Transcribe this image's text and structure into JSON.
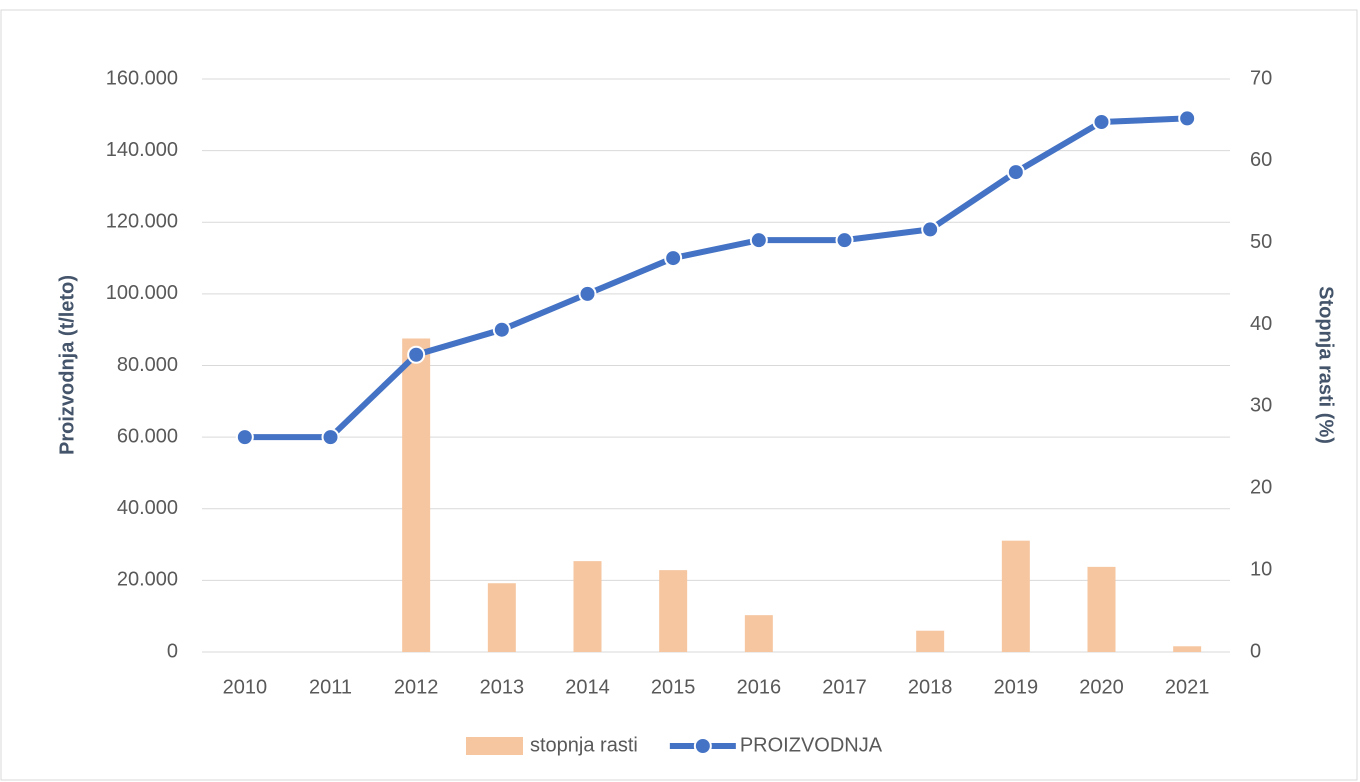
{
  "chart_data": {
    "type": "combo",
    "categories": [
      "2010",
      "2011",
      "2012",
      "2013",
      "2014",
      "2015",
      "2016",
      "2017",
      "2018",
      "2019",
      "2020",
      "2021"
    ],
    "y_label": "Proizvodnja (t/leto)",
    "y2_label": "Stopnja rasti (%)",
    "series": [
      {
        "name": "stopnja rasti",
        "type": "bar",
        "axis": "y2",
        "color": "#f5c6a0",
        "values": [
          0,
          0,
          38.3,
          8.4,
          11.1,
          10.0,
          4.5,
          0,
          2.6,
          13.6,
          10.4,
          0.7
        ]
      },
      {
        "name": "PROIZVODNJA",
        "type": "line",
        "axis": "y",
        "color": "#4472c4",
        "values": [
          60000,
          60000,
          83000,
          90000,
          100000,
          110000,
          115000,
          115000,
          118000,
          134000,
          148000,
          149000
        ]
      }
    ],
    "ylim": [
      0,
      160000
    ],
    "yticks": [
      0,
      {
        "value": 20000,
        "label": "20.000"
      },
      {
        "value": 40000,
        "label": "40.000"
      },
      {
        "value": 60000,
        "label": "60.000"
      },
      {
        "value": 80000,
        "label": "80.000"
      },
      {
        "value": 100000,
        "label": "100.000"
      },
      {
        "value": 120000,
        "label": "120.000"
      },
      {
        "value": 140000,
        "label": "140.000"
      },
      {
        "value": 160000,
        "label": "160.000"
      }
    ],
    "y2lim": [
      0,
      70
    ],
    "y2ticks": [
      0,
      10,
      20,
      30,
      40,
      50,
      60,
      70
    ],
    "grid": true,
    "legend": "bottom"
  }
}
